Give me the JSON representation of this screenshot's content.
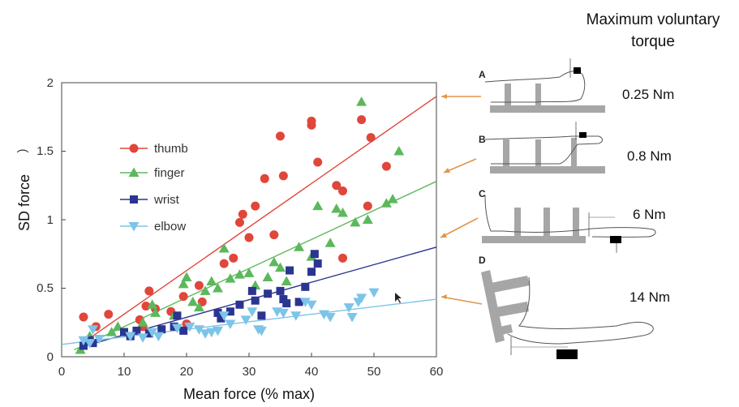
{
  "header": {
    "line1": "Maximum voluntary",
    "line2": "torque"
  },
  "colors": {
    "thumb": "#e0463a",
    "finger": "#5cb85c",
    "wrist": "#2b3590",
    "elbow": "#7cc4e8",
    "arrow": "#e0954a",
    "device": "#a6a6a6"
  },
  "chart_data": {
    "type": "scatter",
    "xlabel": "Mean force (% max)",
    "ylabel": "SD force",
    "ylabel_fragment": ")",
    "xlim": [
      0,
      60
    ],
    "ylim": [
      0,
      2
    ],
    "xticks": [
      "0",
      "10",
      "20",
      "30",
      "40",
      "50",
      "60"
    ],
    "yticks": [
      "0",
      "0.5",
      "1",
      "1.5",
      "2"
    ],
    "legend_placement": "upper-left",
    "series": [
      {
        "name": "thumb",
        "marker": "circle",
        "color": "#e0463a",
        "fit": [
          [
            4,
            0.12
          ],
          [
            60,
            1.9
          ]
        ],
        "points": [
          [
            3.5,
            0.29
          ],
          [
            5.5,
            0.22
          ],
          [
            7.5,
            0.31
          ],
          [
            12.5,
            0.27
          ],
          [
            13.5,
            0.37
          ],
          [
            14,
            0.48
          ],
          [
            15,
            0.35
          ],
          [
            13,
            0.22
          ],
          [
            17.5,
            0.33
          ],
          [
            19.5,
            0.44
          ],
          [
            20,
            0.24
          ],
          [
            22,
            0.52
          ],
          [
            22.5,
            0.4
          ],
          [
            26,
            0.68
          ],
          [
            27.5,
            0.72
          ],
          [
            28.5,
            0.98
          ],
          [
            29,
            1.04
          ],
          [
            30,
            0.87
          ],
          [
            31,
            1.1
          ],
          [
            32.5,
            1.3
          ],
          [
            34,
            0.89
          ],
          [
            35,
            1.61
          ],
          [
            35.5,
            1.32
          ],
          [
            40,
            1.72
          ],
          [
            40,
            1.69
          ],
          [
            41,
            1.42
          ],
          [
            44,
            1.25
          ],
          [
            45,
            1.21
          ],
          [
            45,
            0.72
          ],
          [
            48,
            1.73
          ],
          [
            49,
            1.1
          ],
          [
            49.5,
            1.6
          ],
          [
            52,
            1.39
          ]
        ]
      },
      {
        "name": "finger",
        "marker": "triangle-up",
        "color": "#5cb85c",
        "fit": [
          [
            2,
            0.05
          ],
          [
            60,
            1.28
          ]
        ],
        "points": [
          [
            3,
            0.05
          ],
          [
            4.5,
            0.15
          ],
          [
            8,
            0.18
          ],
          [
            9,
            0.22
          ],
          [
            13,
            0.25
          ],
          [
            14.5,
            0.38
          ],
          [
            15,
            0.32
          ],
          [
            18,
            0.3
          ],
          [
            19.5,
            0.53
          ],
          [
            20,
            0.58
          ],
          [
            21,
            0.4
          ],
          [
            22,
            0.36
          ],
          [
            23,
            0.48
          ],
          [
            24,
            0.55
          ],
          [
            25,
            0.5
          ],
          [
            26,
            0.79
          ],
          [
            27,
            0.57
          ],
          [
            28.5,
            0.6
          ],
          [
            30,
            0.61
          ],
          [
            31,
            0.52
          ],
          [
            33,
            0.58
          ],
          [
            34,
            0.69
          ],
          [
            35,
            0.65
          ],
          [
            36,
            0.55
          ],
          [
            38,
            0.8
          ],
          [
            40,
            0.73
          ],
          [
            41,
            1.1
          ],
          [
            43,
            0.83
          ],
          [
            44,
            1.08
          ],
          [
            45,
            1.05
          ],
          [
            47,
            0.98
          ],
          [
            48,
            1.86
          ],
          [
            49,
            1.0
          ],
          [
            52,
            1.12
          ],
          [
            53,
            1.15
          ],
          [
            54,
            1.5
          ]
        ]
      },
      {
        "name": "wrist",
        "marker": "square",
        "color": "#2b3590",
        "fit": [
          [
            3,
            0.07
          ],
          [
            60,
            0.8
          ]
        ],
        "points": [
          [
            3.5,
            0.08
          ],
          [
            4.5,
            0.12
          ],
          [
            5,
            0.1
          ],
          [
            10,
            0.18
          ],
          [
            11,
            0.15
          ],
          [
            12,
            0.19
          ],
          [
            14,
            0.17
          ],
          [
            16,
            0.2
          ],
          [
            18,
            0.22
          ],
          [
            18.5,
            0.3
          ],
          [
            19.5,
            0.19
          ],
          [
            25,
            0.32
          ],
          [
            25.5,
            0.28
          ],
          [
            27,
            0.33
          ],
          [
            28.5,
            0.38
          ],
          [
            30.5,
            0.48
          ],
          [
            31,
            0.41
          ],
          [
            32,
            0.3
          ],
          [
            33,
            0.46
          ],
          [
            35,
            0.48
          ],
          [
            35.5,
            0.42
          ],
          [
            36,
            0.39
          ],
          [
            36.5,
            0.63
          ],
          [
            38,
            0.4
          ],
          [
            39,
            0.51
          ],
          [
            40,
            0.62
          ],
          [
            40.5,
            0.75
          ],
          [
            41,
            0.68
          ]
        ]
      },
      {
        "name": "elbow",
        "marker": "triangle-down",
        "color": "#7cc4e8",
        "fit": [
          [
            0,
            0.09
          ],
          [
            60,
            0.42
          ]
        ],
        "points": [
          [
            3.5,
            0.12
          ],
          [
            4.5,
            0.1
          ],
          [
            5,
            0.2
          ],
          [
            6,
            0.13
          ],
          [
            11,
            0.15
          ],
          [
            13,
            0.14
          ],
          [
            14.5,
            0.18
          ],
          [
            15.5,
            0.15
          ],
          [
            18.5,
            0.21
          ],
          [
            20.5,
            0.22
          ],
          [
            22,
            0.2
          ],
          [
            23,
            0.17
          ],
          [
            24,
            0.18
          ],
          [
            25,
            0.19
          ],
          [
            26,
            0.3
          ],
          [
            27,
            0.24
          ],
          [
            29.5,
            0.27
          ],
          [
            30.5,
            0.33
          ],
          [
            31.5,
            0.2
          ],
          [
            32,
            0.19
          ],
          [
            34.5,
            0.33
          ],
          [
            35.5,
            0.32
          ],
          [
            37.5,
            0.3
          ],
          [
            39,
            0.4
          ],
          [
            40,
            0.38
          ],
          [
            42,
            0.31
          ],
          [
            43,
            0.29
          ],
          [
            46,
            0.36
          ],
          [
            46.5,
            0.29
          ],
          [
            47.5,
            0.4
          ],
          [
            48,
            0.43
          ],
          [
            50,
            0.47
          ]
        ]
      }
    ]
  },
  "panels": [
    {
      "letter": "A",
      "torque": "0.25 Nm"
    },
    {
      "letter": "B",
      "torque": "0.8 Nm"
    },
    {
      "letter": "C",
      "torque": "6 Nm"
    },
    {
      "letter": "D",
      "torque": "14 Nm"
    }
  ]
}
